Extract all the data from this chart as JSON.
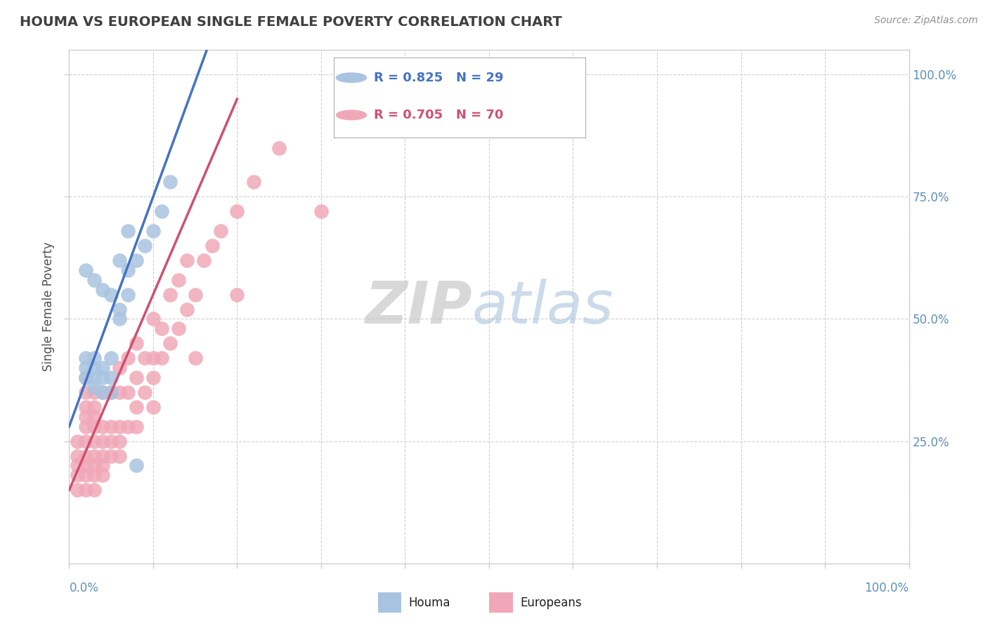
{
  "title": "HOUMA VS EUROPEAN SINGLE FEMALE POVERTY CORRELATION CHART",
  "source": "Source: ZipAtlas.com",
  "ylabel": "Single Female Poverty",
  "houma_color": "#a8c4e0",
  "europeans_color": "#f0a8b8",
  "houma_line_color": "#4472c4",
  "europeans_line_color": "#d05070",
  "title_color": "#404040",
  "axis_color": "#6090b8",
  "watermark_zip": "ZIP",
  "watermark_atlas": "atlas",
  "background_color": "#ffffff",
  "grid_color": "#d0d0d0",
  "houma_scatter_x": [
    0.02,
    0.02,
    0.02,
    0.03,
    0.03,
    0.03,
    0.03,
    0.04,
    0.04,
    0.04,
    0.05,
    0.05,
    0.05,
    0.06,
    0.06,
    0.07,
    0.07,
    0.08,
    0.09,
    0.1,
    0.11,
    0.12,
    0.02,
    0.03,
    0.04,
    0.05,
    0.06,
    0.07,
    0.08
  ],
  "houma_scatter_y": [
    0.38,
    0.4,
    0.42,
    0.36,
    0.38,
    0.4,
    0.42,
    0.35,
    0.38,
    0.4,
    0.35,
    0.38,
    0.42,
    0.5,
    0.52,
    0.55,
    0.6,
    0.62,
    0.65,
    0.68,
    0.72,
    0.78,
    0.6,
    0.58,
    0.56,
    0.55,
    0.62,
    0.68,
    0.2
  ],
  "europeans_scatter_x": [
    0.01,
    0.01,
    0.01,
    0.01,
    0.02,
    0.02,
    0.02,
    0.02,
    0.02,
    0.02,
    0.02,
    0.02,
    0.02,
    0.03,
    0.03,
    0.03,
    0.03,
    0.03,
    0.03,
    0.03,
    0.03,
    0.04,
    0.04,
    0.04,
    0.04,
    0.04,
    0.05,
    0.05,
    0.05,
    0.05,
    0.06,
    0.06,
    0.06,
    0.06,
    0.07,
    0.07,
    0.07,
    0.08,
    0.08,
    0.08,
    0.09,
    0.09,
    0.1,
    0.1,
    0.1,
    0.11,
    0.11,
    0.12,
    0.12,
    0.13,
    0.13,
    0.14,
    0.14,
    0.15,
    0.16,
    0.17,
    0.18,
    0.2,
    0.22,
    0.25,
    0.01,
    0.02,
    0.03,
    0.04,
    0.06,
    0.08,
    0.1,
    0.15,
    0.2,
    0.3
  ],
  "europeans_scatter_y": [
    0.18,
    0.2,
    0.22,
    0.25,
    0.18,
    0.2,
    0.22,
    0.25,
    0.28,
    0.3,
    0.32,
    0.35,
    0.38,
    0.18,
    0.2,
    0.22,
    0.25,
    0.28,
    0.3,
    0.32,
    0.35,
    0.2,
    0.22,
    0.25,
    0.28,
    0.35,
    0.22,
    0.25,
    0.28,
    0.35,
    0.25,
    0.28,
    0.35,
    0.4,
    0.28,
    0.35,
    0.42,
    0.32,
    0.38,
    0.45,
    0.35,
    0.42,
    0.38,
    0.42,
    0.5,
    0.42,
    0.48,
    0.45,
    0.55,
    0.48,
    0.58,
    0.52,
    0.62,
    0.55,
    0.62,
    0.65,
    0.68,
    0.72,
    0.78,
    0.85,
    0.15,
    0.15,
    0.15,
    0.18,
    0.22,
    0.28,
    0.32,
    0.42,
    0.55,
    0.72
  ]
}
